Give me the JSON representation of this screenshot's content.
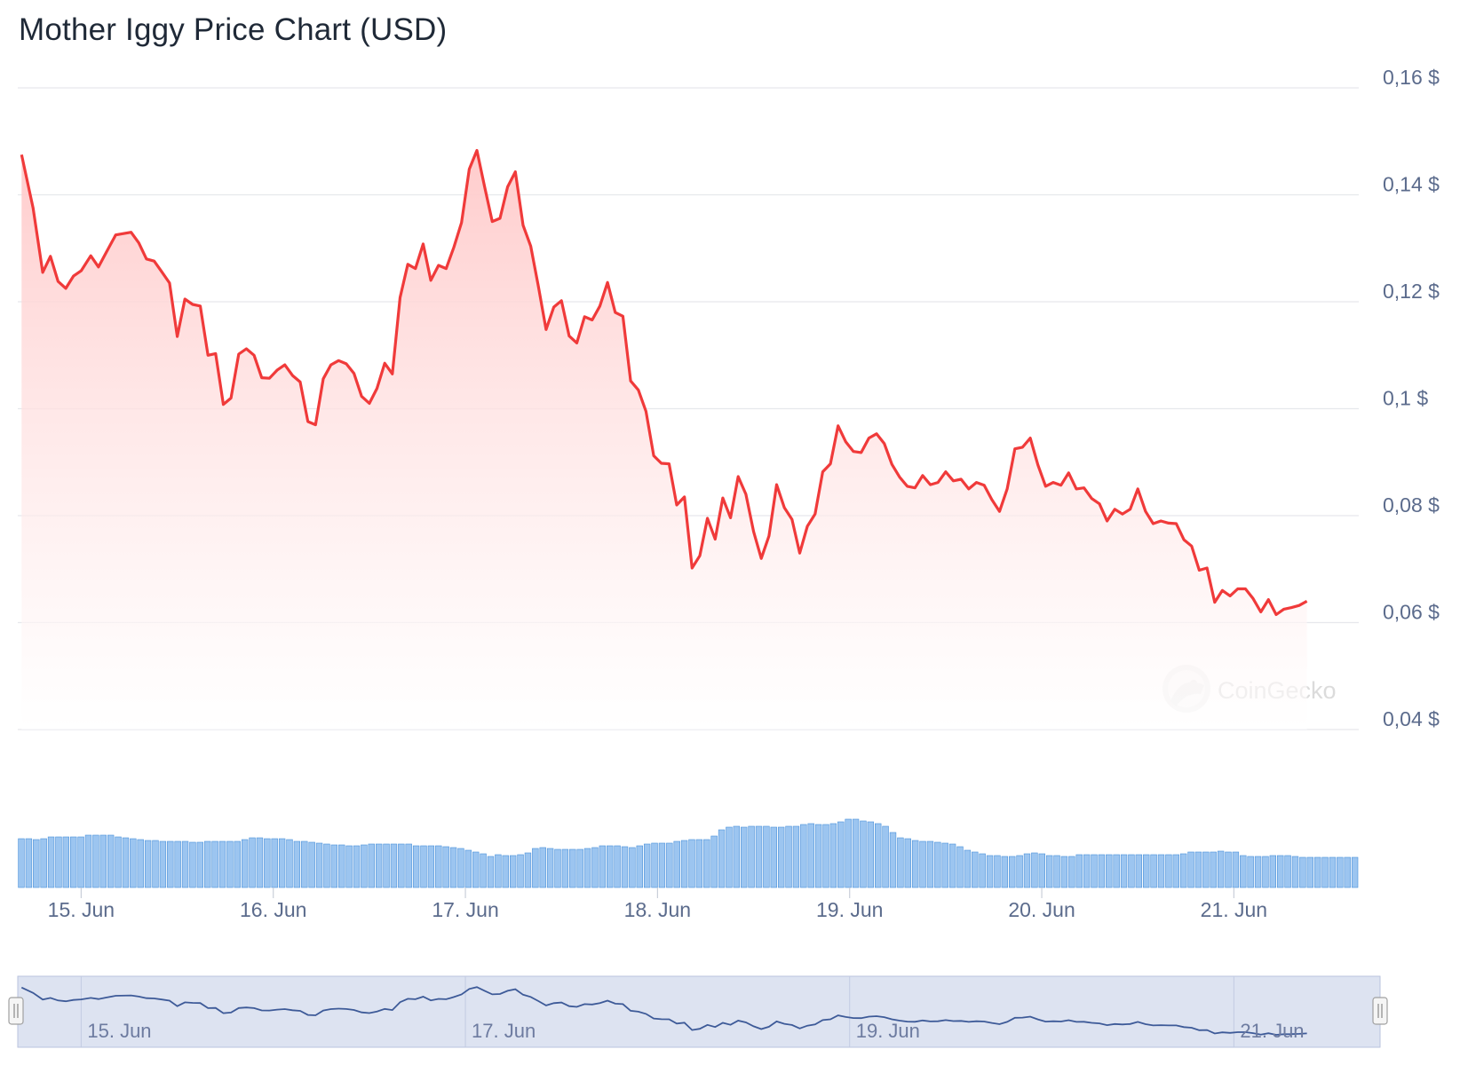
{
  "chart_data": {
    "type": "area",
    "title": "Mother Iggy Price Chart (USD)",
    "currency_suffix": " $",
    "y_axis": {
      "range": [
        0.04,
        0.16
      ],
      "ticks": [
        "0,04 $",
        "0,06 $",
        "0,08 $",
        "0,1 $",
        "0,12 $",
        "0,14 $",
        "0,16 $"
      ],
      "tick_values": [
        0.04,
        0.06,
        0.08,
        0.1,
        0.12,
        0.14,
        0.16
      ],
      "position": "right",
      "grid": true
    },
    "x_axis": {
      "range": [
        14.67,
        21.65
      ],
      "ticks": [
        "15. Jun",
        "16. Jun",
        "17. Jun",
        "18. Jun",
        "19. Jun",
        "20. Jun",
        "21. Jun"
      ],
      "tick_values": [
        15,
        16,
        17,
        18,
        19,
        20,
        21
      ]
    },
    "navigator_ticks": {
      "labels": [
        "15. Jun",
        "17. Jun",
        "19. Jun",
        "21. Jun"
      ],
      "values": [
        15,
        17,
        19,
        21
      ]
    },
    "watermark": "CoinGecko",
    "colors": {
      "line": "#f03a3a",
      "fill_top": "#ffc9c9",
      "volume_fill": "#9cc5f0",
      "volume_stroke": "#4a90d9",
      "grid": "#e6e8ec",
      "tick_text": "#5b6b8c",
      "navigator_bg": "#dde3f1",
      "navigator_line": "#3d5a98"
    },
    "price": [
      [
        14.69,
        0.1475
      ],
      [
        14.75,
        0.1375
      ],
      [
        14.8,
        0.1255
      ],
      [
        14.84,
        0.1285
      ],
      [
        14.88,
        0.1238
      ],
      [
        14.92,
        0.1225
      ],
      [
        14.96,
        0.1248
      ],
      [
        15.0,
        0.1258
      ],
      [
        15.05,
        0.1286
      ],
      [
        15.09,
        0.1265
      ],
      [
        15.13,
        0.1292
      ],
      [
        15.18,
        0.1325
      ],
      [
        15.26,
        0.133
      ],
      [
        15.3,
        0.131
      ],
      [
        15.34,
        0.128
      ],
      [
        15.38,
        0.1276
      ],
      [
        15.42,
        0.1256
      ],
      [
        15.46,
        0.1235
      ],
      [
        15.5,
        0.1135
      ],
      [
        15.54,
        0.1205
      ],
      [
        15.58,
        0.1195
      ],
      [
        15.62,
        0.1192
      ],
      [
        15.66,
        0.11
      ],
      [
        15.7,
        0.1103
      ],
      [
        15.74,
        0.1008
      ],
      [
        15.78,
        0.102
      ],
      [
        15.82,
        0.1102
      ],
      [
        15.86,
        0.1112
      ],
      [
        15.9,
        0.11
      ],
      [
        15.94,
        0.1058
      ],
      [
        15.98,
        0.1057
      ],
      [
        16.02,
        0.1072
      ],
      [
        16.06,
        0.1082
      ],
      [
        16.1,
        0.1062
      ],
      [
        16.14,
        0.105
      ],
      [
        16.18,
        0.0976
      ],
      [
        16.22,
        0.097
      ],
      [
        16.26,
        0.1056
      ],
      [
        16.3,
        0.1082
      ],
      [
        16.34,
        0.109
      ],
      [
        16.38,
        0.1084
      ],
      [
        16.42,
        0.1066
      ],
      [
        16.46,
        0.1023
      ],
      [
        16.5,
        0.101
      ],
      [
        16.54,
        0.1038
      ],
      [
        16.58,
        0.1085
      ],
      [
        16.62,
        0.1065
      ],
      [
        16.66,
        0.1208
      ],
      [
        16.7,
        0.127
      ],
      [
        16.74,
        0.1262
      ],
      [
        16.78,
        0.1308
      ],
      [
        16.82,
        0.124
      ],
      [
        16.86,
        0.1268
      ],
      [
        16.9,
        0.1262
      ],
      [
        16.94,
        0.1302
      ],
      [
        16.98,
        0.1348
      ],
      [
        17.02,
        0.1448
      ],
      [
        17.06,
        0.1483
      ],
      [
        17.1,
        0.1415
      ],
      [
        17.14,
        0.135
      ],
      [
        17.18,
        0.1356
      ],
      [
        17.22,
        0.1415
      ],
      [
        17.26,
        0.1443
      ],
      [
        17.3,
        0.1343
      ],
      [
        17.34,
        0.1304
      ],
      [
        17.38,
        0.1228
      ],
      [
        17.42,
        0.1148
      ],
      [
        17.46,
        0.119
      ],
      [
        17.5,
        0.1202
      ],
      [
        17.54,
        0.1136
      ],
      [
        17.58,
        0.1123
      ],
      [
        17.62,
        0.1172
      ],
      [
        17.66,
        0.1166
      ],
      [
        17.7,
        0.1192
      ],
      [
        17.74,
        0.1236
      ],
      [
        17.78,
        0.118
      ],
      [
        17.82,
        0.1173
      ],
      [
        17.86,
        0.1052
      ],
      [
        17.9,
        0.1035
      ],
      [
        17.94,
        0.0995
      ],
      [
        17.98,
        0.0912
      ],
      [
        18.02,
        0.0898
      ],
      [
        18.06,
        0.0897
      ],
      [
        18.1,
        0.082
      ],
      [
        18.14,
        0.0835
      ],
      [
        18.18,
        0.0702
      ],
      [
        18.22,
        0.0725
      ],
      [
        18.26,
        0.0795
      ],
      [
        18.3,
        0.0756
      ],
      [
        18.34,
        0.0833
      ],
      [
        18.38,
        0.0796
      ],
      [
        18.42,
        0.0873
      ],
      [
        18.46,
        0.084
      ],
      [
        18.5,
        0.077
      ],
      [
        18.54,
        0.072
      ],
      [
        18.58,
        0.0762
      ],
      [
        18.62,
        0.0858
      ],
      [
        18.66,
        0.0815
      ],
      [
        18.7,
        0.0793
      ],
      [
        18.74,
        0.073
      ],
      [
        18.78,
        0.078
      ],
      [
        18.82,
        0.0803
      ],
      [
        18.86,
        0.0882
      ],
      [
        18.9,
        0.0897
      ],
      [
        18.94,
        0.0968
      ],
      [
        18.98,
        0.0938
      ],
      [
        19.02,
        0.092
      ],
      [
        19.06,
        0.0918
      ],
      [
        19.1,
        0.0945
      ],
      [
        19.14,
        0.0953
      ],
      [
        19.18,
        0.0935
      ],
      [
        19.22,
        0.0896
      ],
      [
        19.26,
        0.0872
      ],
      [
        19.3,
        0.0855
      ],
      [
        19.34,
        0.0852
      ],
      [
        19.38,
        0.0875
      ],
      [
        19.42,
        0.0858
      ],
      [
        19.46,
        0.0862
      ],
      [
        19.5,
        0.0882
      ],
      [
        19.54,
        0.0865
      ],
      [
        19.58,
        0.0868
      ],
      [
        19.62,
        0.085
      ],
      [
        19.66,
        0.0862
      ],
      [
        19.7,
        0.0857
      ],
      [
        19.74,
        0.083
      ],
      [
        19.78,
        0.0808
      ],
      [
        19.82,
        0.085
      ],
      [
        19.86,
        0.0925
      ],
      [
        19.9,
        0.0928
      ],
      [
        19.94,
        0.0945
      ],
      [
        19.98,
        0.0895
      ],
      [
        20.02,
        0.0855
      ],
      [
        20.06,
        0.0862
      ],
      [
        20.1,
        0.0857
      ],
      [
        20.14,
        0.088
      ],
      [
        20.18,
        0.085
      ],
      [
        20.22,
        0.0852
      ],
      [
        20.26,
        0.0832
      ],
      [
        20.3,
        0.0822
      ],
      [
        20.34,
        0.079
      ],
      [
        20.38,
        0.0812
      ],
      [
        20.42,
        0.0803
      ],
      [
        20.46,
        0.0812
      ],
      [
        20.5,
        0.085
      ],
      [
        20.54,
        0.0808
      ],
      [
        20.58,
        0.0785
      ],
      [
        20.62,
        0.079
      ],
      [
        20.66,
        0.0786
      ],
      [
        20.7,
        0.0785
      ],
      [
        20.74,
        0.0755
      ],
      [
        20.78,
        0.0743
      ],
      [
        20.82,
        0.0698
      ],
      [
        20.86,
        0.0702
      ],
      [
        20.9,
        0.0638
      ],
      [
        20.94,
        0.066
      ],
      [
        20.98,
        0.065
      ],
      [
        21.02,
        0.0663
      ],
      [
        21.06,
        0.0663
      ],
      [
        21.1,
        0.0645
      ],
      [
        21.14,
        0.062
      ],
      [
        21.18,
        0.0643
      ],
      [
        21.22,
        0.0615
      ],
      [
        21.26,
        0.0625
      ],
      [
        21.3,
        0.0628
      ],
      [
        21.34,
        0.0632
      ],
      [
        21.38,
        0.064
      ]
    ],
    "volume": [
      0.55,
      0.55,
      0.54,
      0.55,
      0.57,
      0.57,
      0.57,
      0.57,
      0.57,
      0.59,
      0.59,
      0.59,
      0.59,
      0.57,
      0.56,
      0.55,
      0.54,
      0.53,
      0.53,
      0.52,
      0.52,
      0.52,
      0.52,
      0.51,
      0.51,
      0.52,
      0.52,
      0.52,
      0.52,
      0.52,
      0.54,
      0.56,
      0.56,
      0.55,
      0.55,
      0.55,
      0.54,
      0.52,
      0.52,
      0.51,
      0.5,
      0.49,
      0.48,
      0.48,
      0.47,
      0.47,
      0.48,
      0.49,
      0.49,
      0.49,
      0.49,
      0.49,
      0.49,
      0.47,
      0.47,
      0.47,
      0.47,
      0.46,
      0.45,
      0.44,
      0.42,
      0.4,
      0.38,
      0.35,
      0.37,
      0.36,
      0.36,
      0.37,
      0.39,
      0.44,
      0.45,
      0.44,
      0.43,
      0.43,
      0.43,
      0.43,
      0.44,
      0.45,
      0.47,
      0.47,
      0.47,
      0.46,
      0.45,
      0.47,
      0.49,
      0.5,
      0.5,
      0.5,
      0.52,
      0.53,
      0.54,
      0.54,
      0.54,
      0.58,
      0.65,
      0.68,
      0.69,
      0.68,
      0.69,
      0.69,
      0.69,
      0.68,
      0.68,
      0.69,
      0.69,
      0.71,
      0.72,
      0.71,
      0.71,
      0.72,
      0.74,
      0.77,
      0.77,
      0.75,
      0.74,
      0.72,
      0.69,
      0.62,
      0.56,
      0.55,
      0.53,
      0.52,
      0.52,
      0.51,
      0.5,
      0.49,
      0.46,
      0.42,
      0.4,
      0.38,
      0.36,
      0.36,
      0.35,
      0.35,
      0.36,
      0.38,
      0.39,
      0.38,
      0.36,
      0.36,
      0.35,
      0.35,
      0.37,
      0.37,
      0.37,
      0.37,
      0.37,
      0.37,
      0.37,
      0.37,
      0.37,
      0.37,
      0.37,
      0.37,
      0.37,
      0.37,
      0.38,
      0.4,
      0.4,
      0.4,
      0.4,
      0.41,
      0.4,
      0.4,
      0.36,
      0.35,
      0.35,
      0.35,
      0.36,
      0.36,
      0.36,
      0.35,
      0.34,
      0.34,
      0.34,
      0.34,
      0.34,
      0.34,
      0.34,
      0.34
    ]
  }
}
